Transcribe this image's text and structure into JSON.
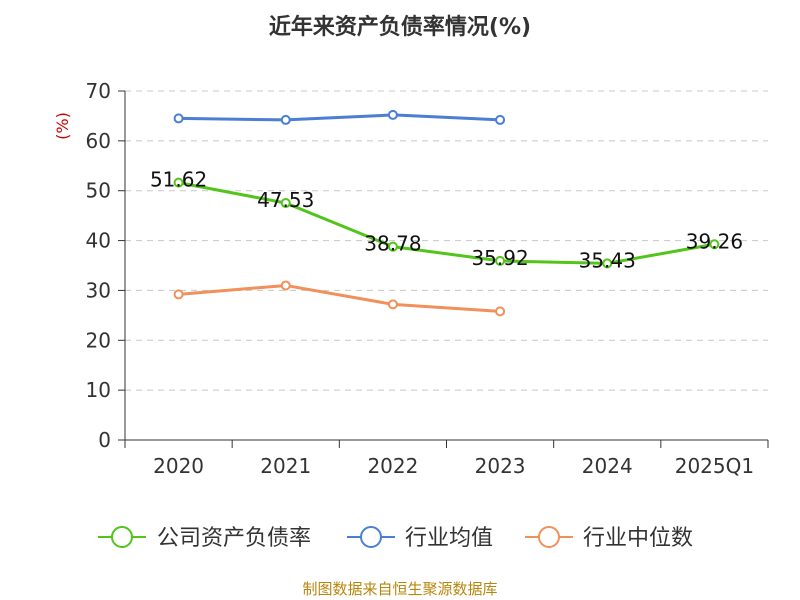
{
  "chart_data": {
    "type": "line",
    "title": "近年来资产负债率情况(%)",
    "ylabel": "(%)",
    "categories": [
      "2020",
      "2021",
      "2022",
      "2023",
      "2024",
      "2025Q1"
    ],
    "ylim": [
      0,
      70
    ],
    "yticks": [
      0,
      10,
      20,
      30,
      40,
      50,
      60,
      70
    ],
    "grid": true,
    "legend_position": "bottom",
    "series": [
      {
        "name": "公司资产负债率",
        "color": "#52c41a",
        "values": [
          51.62,
          47.53,
          38.78,
          35.92,
          35.43,
          39.26
        ],
        "labels": [
          "51.62",
          "47.53",
          "38.78",
          "35.92",
          "35.43",
          "39.26"
        ]
      },
      {
        "name": "行业均值",
        "color": "#4a7fd4",
        "values": [
          64.5,
          64.2,
          65.2,
          64.2,
          null,
          null
        ]
      },
      {
        "name": "行业中位数",
        "color": "#f0905a",
        "values": [
          29.2,
          31.0,
          27.2,
          25.8,
          null,
          null
        ]
      }
    ],
    "source": "制图数据来自恒生聚源数据库"
  }
}
